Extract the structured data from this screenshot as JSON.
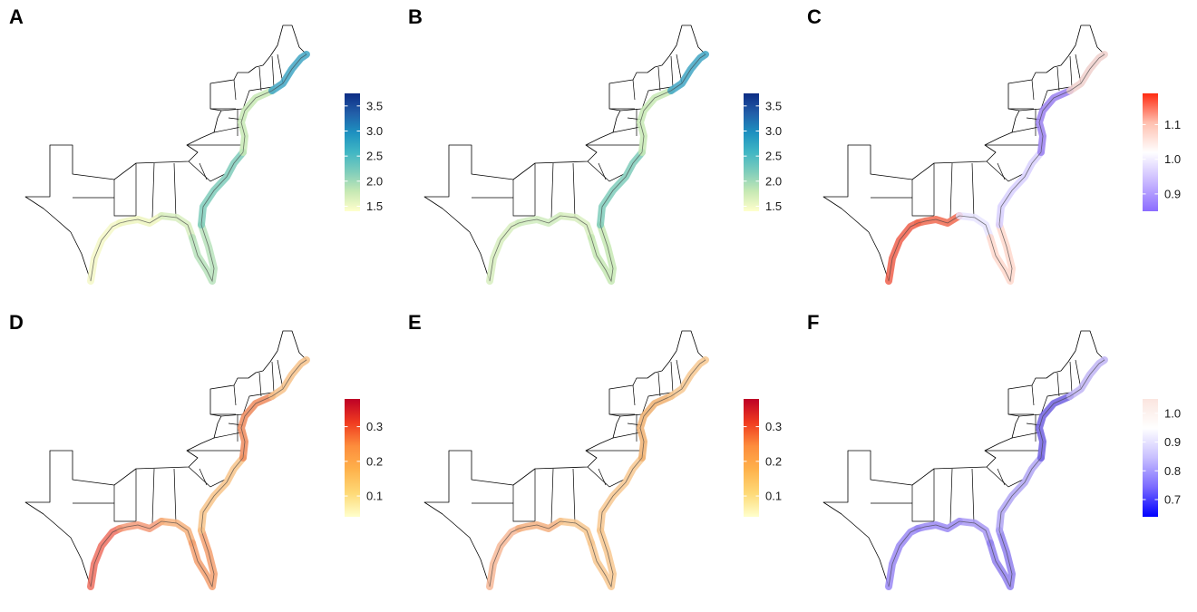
{
  "segments": [
    "texas-gulf",
    "louisiana-gulf",
    "florida-panhandle",
    "florida-peninsula",
    "southeast-atlantic",
    "mid-atlantic",
    "northeast"
  ],
  "panels": [
    {
      "label": "A",
      "range": [
        1.4,
        3.75
      ],
      "ticks": [
        "1.5",
        "2.0",
        "2.5",
        "3.0",
        "3.5"
      ],
      "tick_values": [
        1.5,
        2.0,
        2.5,
        3.0,
        3.5
      ],
      "gradient": [
        "#ffffcc",
        "#c7e9b4",
        "#7fcdbb",
        "#41b6c4",
        "#1d91c0",
        "#225ea8",
        "#0c2c84"
      ],
      "coast_colors": [
        "#f5f8c8",
        "#eef6c0",
        "#d8efc0",
        "#b8e3bc",
        "#7fcdbb",
        "#c7e9b4",
        "#41a6c4"
      ]
    },
    {
      "label": "B",
      "range": [
        1.4,
        3.75
      ],
      "ticks": [
        "1.5",
        "2.0",
        "2.5",
        "3.0",
        "3.5"
      ],
      "tick_values": [
        1.5,
        2.0,
        2.5,
        3.0,
        3.5
      ],
      "gradient": [
        "#ffffcc",
        "#c7e9b4",
        "#7fcdbb",
        "#41b6c4",
        "#1d91c0",
        "#225ea8",
        "#0c2c84"
      ],
      "coast_colors": [
        "#d8efc0",
        "#d0ecbe",
        "#d8efc0",
        "#c7e9b4",
        "#7fcdbb",
        "#c7e9b4",
        "#41a6c4"
      ]
    },
    {
      "label": "C",
      "range": [
        0.85,
        1.19
      ],
      "ticks": [
        "0.9",
        "1.0",
        "1.1"
      ],
      "tick_values": [
        0.9,
        1.0,
        1.1
      ],
      "gradient": [
        "#8b6cff",
        "#c9b8ff",
        "#ffffff",
        "#ffc0b0",
        "#ff2a10"
      ],
      "coast_colors": [
        "#f0604c",
        "#f06a50",
        "#e8e4ff",
        "#ffd8cc",
        "#d8d0ff",
        "#9a80f0",
        "#f0d0cc"
      ]
    },
    {
      "label": "D",
      "range": [
        0.04,
        0.38
      ],
      "ticks": [
        "0.1",
        "0.2",
        "0.3"
      ],
      "tick_values": [
        0.1,
        0.2,
        0.3
      ],
      "gradient": [
        "#ffffcc",
        "#fed976",
        "#feb24c",
        "#fd8d3c",
        "#f03b20",
        "#bd0026"
      ],
      "coast_colors": [
        "#ef7060",
        "#f49a78",
        "#f7b27c",
        "#f4a070",
        "#f8c48a",
        "#ef8a5c",
        "#f7c28a"
      ]
    },
    {
      "label": "E",
      "range": [
        0.04,
        0.38
      ],
      "ticks": [
        "0.1",
        "0.2",
        "0.3"
      ],
      "tick_values": [
        0.1,
        0.2,
        0.3
      ],
      "gradient": [
        "#ffffcc",
        "#fed976",
        "#feb24c",
        "#fd8d3c",
        "#f03b20",
        "#bd0026"
      ],
      "coast_colors": [
        "#f7b898",
        "#f4b080",
        "#f8c890",
        "#f8c890",
        "#f8c890",
        "#f0b070",
        "#f7c890"
      ]
    },
    {
      "label": "F",
      "range": [
        0.64,
        1.05
      ],
      "ticks": [
        "0.7",
        "0.8",
        "0.9",
        "1.0"
      ],
      "tick_values": [
        0.7,
        0.8,
        0.9,
        1.0
      ],
      "gradient": [
        "#0000ff",
        "#7a6aff",
        "#c8bfff",
        "#ffffff",
        "#fbe5df"
      ],
      "coast_colors": [
        "#9a88f4",
        "#9a88f4",
        "#a898f4",
        "#9080ee",
        "#b0a4f4",
        "#7060e0",
        "#c0b4f4"
      ]
    }
  ]
}
